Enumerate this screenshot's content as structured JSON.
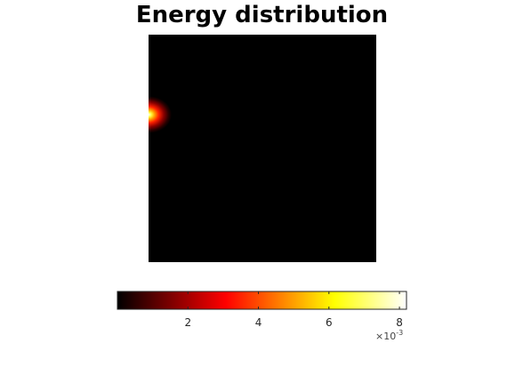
{
  "chart_data": {
    "type": "heatmap",
    "title": "Energy distribution",
    "xlabel": "",
    "ylabel": "",
    "colormap": "hot",
    "hotspot": {
      "location": "left edge, about one fifth down from the top",
      "peak_value": 0.0082
    },
    "background_value": 0,
    "colorbar": {
      "orientation": "horizontal",
      "location": "below",
      "range": [
        0,
        0.0082
      ],
      "ticks": [
        2,
        4,
        6,
        8
      ],
      "tick_labels": [
        "2",
        "4",
        "6",
        "8"
      ],
      "exponent_base": "×10",
      "exponent_power": "-3"
    }
  }
}
